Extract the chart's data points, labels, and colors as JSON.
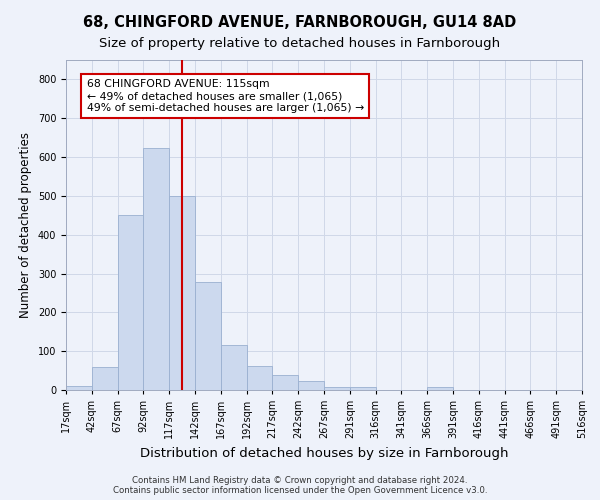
{
  "title_line1": "68, CHINGFORD AVENUE, FARNBOROUGH, GU14 8AD",
  "title_line2": "Size of property relative to detached houses in Farnborough",
  "xlabel": "Distribution of detached houses by size in Farnborough",
  "ylabel": "Number of detached properties",
  "bar_values": [
    10,
    58,
    450,
    623,
    500,
    277,
    115,
    63,
    38,
    22,
    8,
    7,
    0,
    0,
    7,
    0,
    0,
    0,
    0,
    0
  ],
  "bar_labels": [
    "17sqm",
    "42sqm",
    "67sqm",
    "92sqm",
    "117sqm",
    "142sqm",
    "167sqm",
    "192sqm",
    "217sqm",
    "242sqm",
    "267sqm",
    "291sqm",
    "316sqm",
    "341sqm",
    "366sqm",
    "391sqm",
    "416sqm",
    "441sqm",
    "466sqm",
    "491sqm",
    "516sqm"
  ],
  "bar_color": "#ccd9ee",
  "bar_edge_color": "#9ab0d0",
  "vline_x_index": 4,
  "vline_color": "#cc0000",
  "annotation_text": "68 CHINGFORD AVENUE: 115sqm\n← 49% of detached houses are smaller (1,065)\n49% of semi-detached houses are larger (1,065) →",
  "annotation_box_color": "#ffffff",
  "annotation_box_edge": "#cc0000",
  "ylim": [
    0,
    850
  ],
  "yticks": [
    0,
    100,
    200,
    300,
    400,
    500,
    600,
    700,
    800
  ],
  "grid_color": "#d0d8e8",
  "background_color": "#eef2fa",
  "footer_line1": "Contains HM Land Registry data © Crown copyright and database right 2024.",
  "footer_line2": "Contains public sector information licensed under the Open Government Licence v3.0.",
  "title_fontsize": 10.5,
  "subtitle_fontsize": 9.5,
  "tick_fontsize": 7,
  "ylabel_fontsize": 8.5,
  "xlabel_fontsize": 9.5,
  "annotation_fontsize": 7.8,
  "footer_fontsize": 6.2
}
